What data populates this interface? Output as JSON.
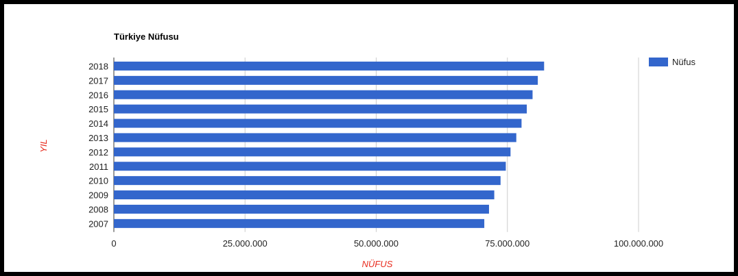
{
  "chart_data": {
    "type": "bar",
    "orientation": "horizontal",
    "title": "Türkiye Nüfusu",
    "xlabel": "NÜFUS",
    "ylabel": "YIL",
    "categories": [
      "2018",
      "2017",
      "2016",
      "2015",
      "2014",
      "2013",
      "2012",
      "2011",
      "2010",
      "2009",
      "2008",
      "2007"
    ],
    "series": [
      {
        "name": "Nüfus",
        "color": "#3366cc",
        "values": [
          82000000,
          80800000,
          79800000,
          78700000,
          77700000,
          76700000,
          75600000,
          74700000,
          73700000,
          72500000,
          71500000,
          70600000
        ]
      }
    ],
    "xlim": [
      0,
      100000000
    ],
    "xticks": [
      0,
      25000000,
      50000000,
      75000000,
      100000000
    ],
    "xtick_labels": [
      "0",
      "25.000.000",
      "50.000.000",
      "75.000.000",
      "100.000.000"
    ],
    "grid": true,
    "legend_position": "right",
    "axis_title_color": "#e8291b"
  }
}
